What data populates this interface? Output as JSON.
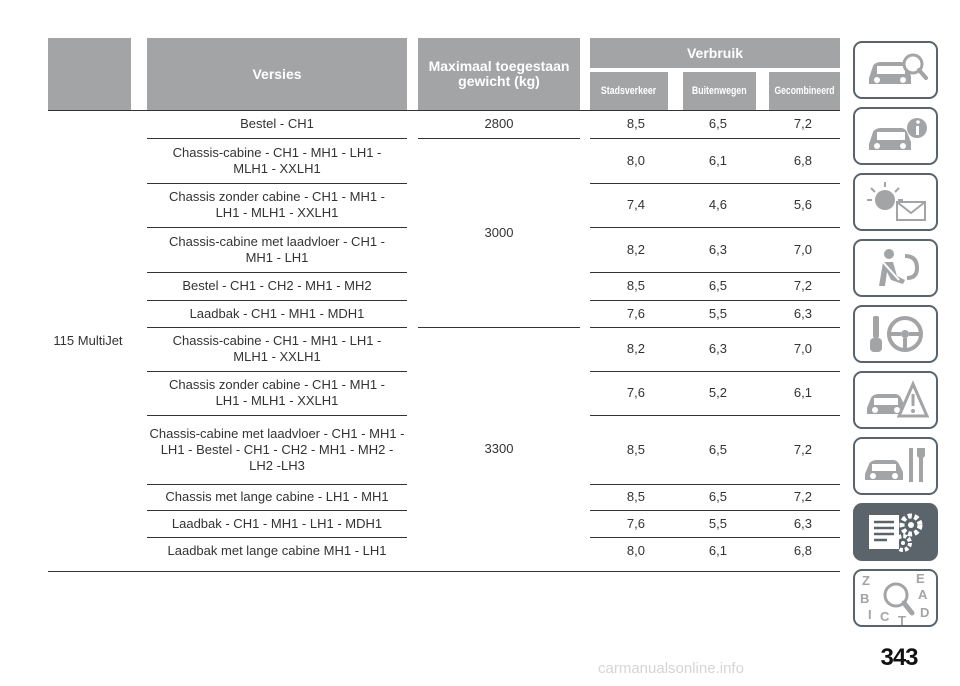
{
  "table": {
    "header": {
      "versions": "Versies",
      "max_weight": "Maximaal toegestaan gewicht (kg)",
      "consumption": "Verbruik",
      "city": "Stadsverkeer",
      "extra_urban": "Buitenwegen",
      "combined": "Gecombineerd"
    },
    "engine": "115 MultiJet",
    "weight_groups": [
      "2800",
      "3000",
      "3300"
    ],
    "rows": [
      {
        "version": "Bestel - CH1",
        "city": "8,5",
        "extra": "6,5",
        "combined": "7,2"
      },
      {
        "version": "Chassis-cabine - CH1 - MH1 - LH1 - MLH1 - XXLH1",
        "city": "8,0",
        "extra": "6,1",
        "combined": "6,8"
      },
      {
        "version": "Chassis zonder cabine - CH1 - MH1 - LH1 - MLH1 - XXLH1",
        "city": "7,4",
        "extra": "4,6",
        "combined": "5,6"
      },
      {
        "version": "Chassis-cabine met laadvloer - CH1 - MH1 - LH1",
        "city": "8,2",
        "extra": "6,3",
        "combined": "7,0"
      },
      {
        "version": "Bestel - CH1 - CH2 - MH1 - MH2",
        "city": "8,5",
        "extra": "6,5",
        "combined": "7,2"
      },
      {
        "version": "Laadbak - CH1 - MH1 - MDH1",
        "city": "7,6",
        "extra": "5,5",
        "combined": "6,3"
      },
      {
        "version": "Chassis-cabine - CH1 - MH1 - LH1 - MLH1 - XXLH1",
        "city": "8,2",
        "extra": "6,3",
        "combined": "7,0"
      },
      {
        "version": "Chassis zonder cabine - CH1 - MH1 - LH1 - MLH1 - XXLH1",
        "city": "7,6",
        "extra": "5,2",
        "combined": "6,1"
      },
      {
        "version": "Chassis-cabine met laadvloer - CH1 - MH1 - LH1 - Bestel - CH1 - CH2 - MH1 - MH2 - LH2 -LH3",
        "city": "8,5",
        "extra": "6,5",
        "combined": "7,2"
      },
      {
        "version": "Chassis met lange cabine - LH1 - MH1",
        "city": "8,5",
        "extra": "6,5",
        "combined": "7,2"
      },
      {
        "version": "Laadbak - CH1 - MH1 - LH1 - MDH1",
        "city": "7,6",
        "extra": "5,5",
        "combined": "6,3"
      },
      {
        "version": "Laadbak met lange cabine MH1 - LH1",
        "city": "8,0",
        "extra": "6,1",
        "combined": "6,8"
      }
    ]
  },
  "sidebar": {
    "tabs": [
      {
        "icon": "car-search-icon"
      },
      {
        "icon": "car-info-icon"
      },
      {
        "icon": "warning-light-message-icon"
      },
      {
        "icon": "seatbelt-airbag-icon"
      },
      {
        "icon": "key-steering-wheel-icon"
      },
      {
        "icon": "car-breakdown-warning-icon"
      },
      {
        "icon": "car-maintenance-tools-icon"
      },
      {
        "icon": "technical-data-gears-icon",
        "active": true
      },
      {
        "icon": "alphabetical-index-icon",
        "letters": [
          "Z",
          "E",
          "B",
          "A",
          "I",
          "C",
          "D",
          "T"
        ]
      }
    ]
  },
  "page_number": "343",
  "watermark": "carmanualsonline.info",
  "colors": {
    "header_gray": "#a3a4a6",
    "tab_dark": "#5c646b",
    "text": "#333333"
  }
}
